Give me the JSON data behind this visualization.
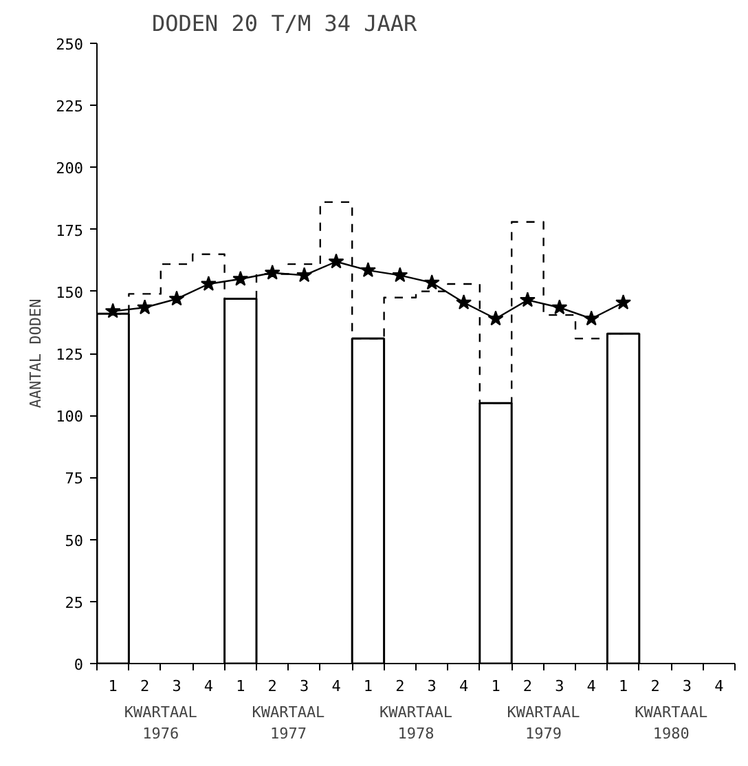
{
  "chart_data": {
    "type": "bar",
    "title": "DODEN 20 T/M 34 JAAR",
    "ylabel": "AANTAL DODEN",
    "categories": [
      "1",
      "2",
      "3",
      "4",
      "1",
      "2",
      "3",
      "4",
      "1",
      "2",
      "3",
      "4",
      "1",
      "2",
      "3",
      "4",
      "1",
      "2",
      "3",
      "4"
    ],
    "annotations": [
      "KWARTAAL 1976",
      "KWARTAAL 1977",
      "KWARTAAL 1978",
      "KWARTAAL 1979",
      "KWARTAAL 1980"
    ],
    "series": [
      {
        "color": "#000000",
        "values": [
          141,
          null,
          null,
          null,
          147,
          null,
          null,
          null,
          131,
          null,
          null,
          null,
          105,
          null,
          null,
          null,
          133,
          null,
          null,
          null
        ]
      },
      {
        "type": "step",
        "color": "#000000",
        "line_style": "dashed",
        "values": [
          141,
          149,
          161,
          165,
          147,
          157,
          161,
          186,
          131,
          147.5,
          150,
          153,
          105,
          178,
          140.5,
          131,
          133,
          null,
          null,
          null
        ]
      },
      {
        "type": "line",
        "color": "#000000",
        "marker": "star",
        "line_style": "solid",
        "values": [
          142,
          143.5,
          147,
          153,
          155,
          157.5,
          156.5,
          162,
          158.5,
          156.5,
          153.5,
          145.5,
          139,
          146.5,
          143.5,
          139,
          145.5,
          null,
          null,
          null
        ]
      }
    ],
    "ylim": [
      0,
      250
    ],
    "yticks": [
      0,
      25,
      50,
      75,
      100,
      125,
      150,
      175,
      200,
      225,
      250
    ],
    "grid": false
  }
}
